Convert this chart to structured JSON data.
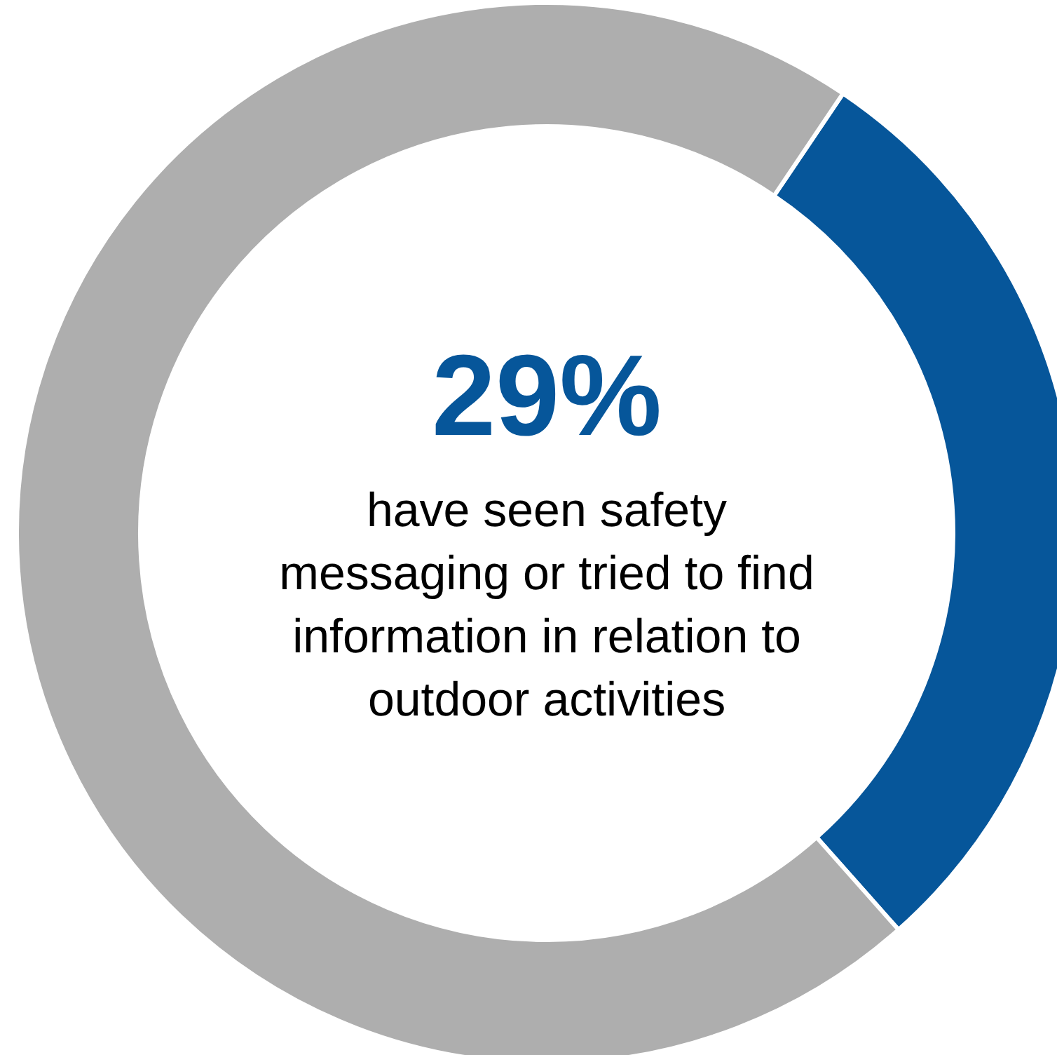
{
  "chart_data": {
    "type": "donut",
    "title": "29%",
    "categories": [
      null,
      null
    ],
    "values": [
      29,
      71
    ],
    "colors": [
      "#06569a",
      "#aeaeae"
    ],
    "annotations": [
      "have seen safety messaging or tried to find information in relation to outdoor activities"
    ]
  }
}
